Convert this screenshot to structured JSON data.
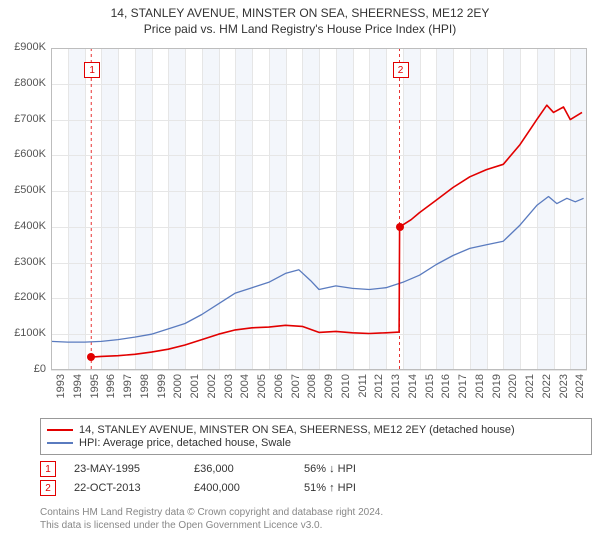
{
  "title_line1": "14, STANLEY AVENUE, MINSTER ON SEA, SHEERNESS, ME12 2EY",
  "title_line2": "Price paid vs. HM Land Registry's House Price Index (HPI)",
  "chart": {
    "type": "line",
    "background_color": "#ffffff",
    "alt_band_color": "#f3f6fb",
    "grid_color": "#e6e6e6",
    "border_color": "#bdbdbd",
    "y": {
      "min": 0,
      "max": 900,
      "step": 100,
      "prefix": "£",
      "suffix": "K",
      "ticks": [
        "£0",
        "£100K",
        "£200K",
        "£300K",
        "£400K",
        "£500K",
        "£600K",
        "£700K",
        "£800K",
        "£900K"
      ]
    },
    "x": {
      "min": 1993,
      "max": 2025,
      "ticks": [
        1993,
        1994,
        1995,
        1996,
        1997,
        1998,
        1999,
        2000,
        2001,
        2002,
        2003,
        2004,
        2005,
        2006,
        2007,
        2008,
        2009,
        2010,
        2011,
        2012,
        2013,
        2014,
        2015,
        2016,
        2017,
        2018,
        2019,
        2020,
        2021,
        2022,
        2023,
        2024
      ]
    },
    "series": {
      "property": {
        "label": "14, STANLEY AVENUE, MINSTER ON SEA, SHEERNESS, ME12 2EY (detached house)",
        "color": "#e20000",
        "line_width": 1.6,
        "points_xy": [
          [
            1995.4,
            36
          ],
          [
            1996,
            38
          ],
          [
            1997,
            40
          ],
          [
            1998,
            44
          ],
          [
            1999,
            50
          ],
          [
            2000,
            58
          ],
          [
            2001,
            70
          ],
          [
            2002,
            85
          ],
          [
            2003,
            100
          ],
          [
            2004,
            112
          ],
          [
            2005,
            118
          ],
          [
            2006,
            120
          ],
          [
            2007,
            125
          ],
          [
            2008,
            122
          ],
          [
            2009,
            105
          ],
          [
            2010,
            108
          ],
          [
            2011,
            104
          ],
          [
            2012,
            102
          ],
          [
            2013,
            104
          ],
          [
            2013.78,
            106
          ],
          [
            2013.81,
            400
          ],
          [
            2014.5,
            420
          ],
          [
            2015,
            440
          ],
          [
            2016,
            475
          ],
          [
            2017,
            510
          ],
          [
            2018,
            540
          ],
          [
            2019,
            560
          ],
          [
            2020,
            575
          ],
          [
            2021,
            630
          ],
          [
            2022,
            700
          ],
          [
            2022.6,
            740
          ],
          [
            2023,
            720
          ],
          [
            2023.6,
            735
          ],
          [
            2024,
            700
          ],
          [
            2024.7,
            720
          ]
        ]
      },
      "hpi": {
        "label": "HPI: Average price, detached house, Swale",
        "color": "#5a7bbf",
        "line_width": 1.3,
        "points_xy": [
          [
            1993,
            80
          ],
          [
            1994,
            78
          ],
          [
            1995,
            78
          ],
          [
            1996,
            80
          ],
          [
            1997,
            85
          ],
          [
            1998,
            92
          ],
          [
            1999,
            100
          ],
          [
            2000,
            115
          ],
          [
            2001,
            130
          ],
          [
            2002,
            155
          ],
          [
            2003,
            185
          ],
          [
            2004,
            215
          ],
          [
            2005,
            230
          ],
          [
            2006,
            245
          ],
          [
            2007,
            270
          ],
          [
            2007.8,
            280
          ],
          [
            2008.5,
            250
          ],
          [
            2009,
            225
          ],
          [
            2010,
            235
          ],
          [
            2011,
            228
          ],
          [
            2012,
            225
          ],
          [
            2013,
            230
          ],
          [
            2014,
            245
          ],
          [
            2015,
            265
          ],
          [
            2016,
            295
          ],
          [
            2017,
            320
          ],
          [
            2018,
            340
          ],
          [
            2019,
            350
          ],
          [
            2020,
            360
          ],
          [
            2021,
            405
          ],
          [
            2022,
            460
          ],
          [
            2022.7,
            485
          ],
          [
            2023.2,
            465
          ],
          [
            2023.8,
            480
          ],
          [
            2024.3,
            470
          ],
          [
            2024.8,
            480
          ]
        ]
      }
    },
    "sale_markers": [
      {
        "n": "1",
        "x": 1995.4,
        "y": 36,
        "color": "#e20000"
      },
      {
        "n": "2",
        "x": 2013.81,
        "y": 400,
        "color": "#e20000"
      }
    ]
  },
  "legend": [
    {
      "color": "#e20000",
      "text": "14, STANLEY AVENUE, MINSTER ON SEA, SHEERNESS, ME12 2EY (detached house)"
    },
    {
      "color": "#5a7bbf",
      "text": "HPI: Average price, detached house, Swale"
    }
  ],
  "sales": [
    {
      "n": "1",
      "color": "#e20000",
      "date": "23-MAY-1995",
      "price": "£36,000",
      "delta": "56% ↓ HPI"
    },
    {
      "n": "2",
      "color": "#e20000",
      "date": "22-OCT-2013",
      "price": "£400,000",
      "delta": "51% ↑ HPI"
    }
  ],
  "footer": {
    "line1": "Contains HM Land Registry data © Crown copyright and database right 2024.",
    "line2": "This data is licensed under the Open Government Licence v3.0."
  }
}
